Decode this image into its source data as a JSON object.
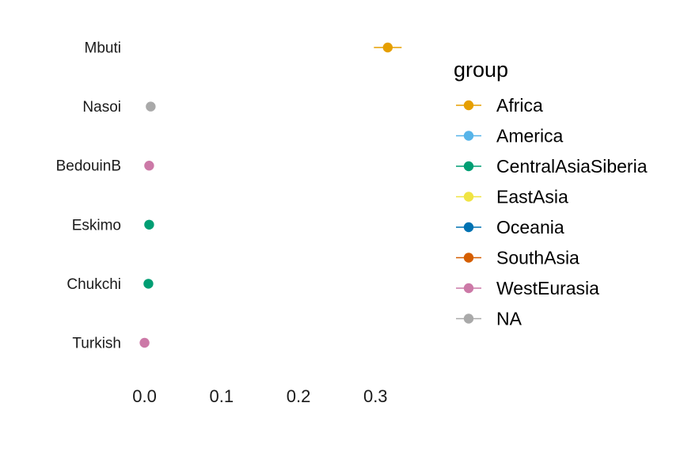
{
  "chart_data": {
    "type": "scatter",
    "title": "",
    "xlabel": "",
    "ylabel": "",
    "xlim": [
      -0.015,
      0.345
    ],
    "x_ticks": [
      0.0,
      0.1,
      0.2,
      0.3
    ],
    "x_tick_labels": [
      "0.0",
      "0.1",
      "0.2",
      "0.3"
    ],
    "grid": false,
    "categories": [
      "Mbuti",
      "Nasoi",
      "BedouinB",
      "Eskimo",
      "Chukchi",
      "Turkish"
    ],
    "points": [
      {
        "label": "Mbuti",
        "x": 0.316,
        "group": "Africa",
        "err_low": 0.298,
        "err_high": 0.334
      },
      {
        "label": "Nasoi",
        "x": 0.008,
        "group": "NA",
        "err_low": 0.008,
        "err_high": 0.008
      },
      {
        "label": "BedouinB",
        "x": 0.006,
        "group": "WestEurasia",
        "err_low": 0.006,
        "err_high": 0.006
      },
      {
        "label": "Eskimo",
        "x": 0.006,
        "group": "CentralAsiaSiberia",
        "err_low": 0.006,
        "err_high": 0.006
      },
      {
        "label": "Chukchi",
        "x": 0.005,
        "group": "CentralAsiaSiberia",
        "err_low": 0.005,
        "err_high": 0.005
      },
      {
        "label": "Turkish",
        "x": 0.0,
        "group": "WestEurasia",
        "err_low": 0.0,
        "err_high": 0.0
      }
    ],
    "legend": {
      "title": "group",
      "position": "right",
      "entries": [
        {
          "name": "Africa",
          "color": "#E69F00"
        },
        {
          "name": "America",
          "color": "#56B4E9"
        },
        {
          "name": "CentralAsiaSiberia",
          "color": "#009E73"
        },
        {
          "name": "EastAsia",
          "color": "#F0E442"
        },
        {
          "name": "Oceania",
          "color": "#0072B2"
        },
        {
          "name": "SouthAsia",
          "color": "#D55E00"
        },
        {
          "name": "WestEurasia",
          "color": "#CC79A7"
        },
        {
          "name": "NA",
          "color": "#A9A9A9"
        }
      ]
    }
  }
}
